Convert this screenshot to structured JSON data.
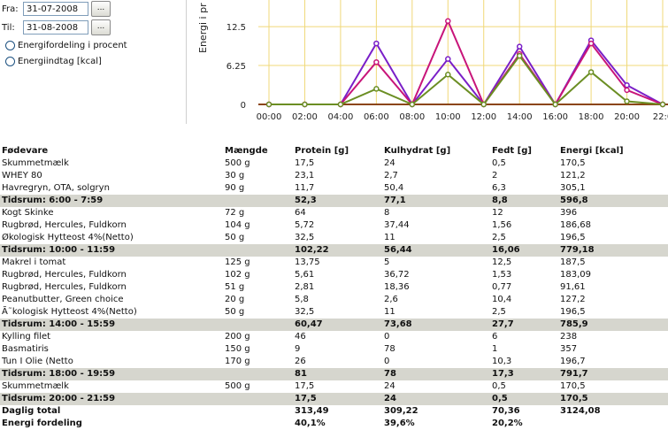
{
  "controls": {
    "from_label": "Fra:",
    "from_value": "31-07-2008",
    "to_label": "Til:",
    "to_value": "31-08-2008",
    "picker_label": "...",
    "radio_percent_label": "Energifordeling i procent",
    "radio_kcal_label": "Energiindtag [kcal]"
  },
  "chart_data": {
    "type": "line",
    "ylabel": "Energi i pr",
    "y_ticks": [
      "0",
      "6.25",
      "12.5"
    ],
    "ylim": [
      0,
      16.5
    ],
    "x": [
      "00:00",
      "02:00",
      "04:00",
      "06:00",
      "08:00",
      "10:00",
      "12:00",
      "14:00",
      "16:00",
      "18:00",
      "20:00",
      "22:0"
    ],
    "series": [
      {
        "color": "#7a1fc8",
        "values": [
          0,
          0,
          0,
          9.8,
          0,
          7.3,
          0,
          9.3,
          0,
          10.3,
          3.1,
          0
        ]
      },
      {
        "color": "#c8157a",
        "values": [
          0,
          0,
          0,
          6.8,
          0,
          13.4,
          0,
          8.1,
          0,
          9.8,
          2.3,
          0
        ]
      },
      {
        "color": "#6b8e23",
        "values": [
          0,
          0,
          0,
          2.5,
          0,
          4.8,
          0,
          7.8,
          0,
          5.2,
          0.5,
          0
        ]
      }
    ],
    "grid": true,
    "baseline_color": "#8b4513",
    "grid_color": "#f0d878"
  },
  "table": {
    "headers": [
      "Fødevare",
      "Mængde",
      "Protein [g]",
      "Kulhydrat [g]",
      "Fedt [g]",
      "Energi [kcal]"
    ],
    "rows": [
      {
        "type": "item",
        "cells": [
          "Skummetmælk",
          "500 g",
          "17,5",
          "24",
          "0,5",
          "170,5"
        ]
      },
      {
        "type": "item",
        "cells": [
          "WHEY 80",
          "30 g",
          "23,1",
          "2,7",
          "2",
          "121,2"
        ]
      },
      {
        "type": "item",
        "cells": [
          "Havregryn, OTA, solgryn",
          "90 g",
          "11,7",
          "50,4",
          "6,3",
          "305,1"
        ]
      },
      {
        "type": "sum",
        "cells": [
          "Tidsrum: 6:00 - 7:59",
          "",
          "52,3",
          "77,1",
          "8,8",
          "596,8"
        ]
      },
      {
        "type": "item",
        "cells": [
          "Kogt Skinke",
          "72 g",
          "64",
          "8",
          "12",
          "396"
        ]
      },
      {
        "type": "item",
        "cells": [
          "Rugbrød, Hercules, Fuldkorn",
          "104 g",
          "5,72",
          "37,44",
          "1,56",
          "186,68"
        ]
      },
      {
        "type": "item",
        "cells": [
          "Økologisk Hytteost 4%(Netto)",
          "50 g",
          "32,5",
          "11",
          "2,5",
          "196,5"
        ]
      },
      {
        "type": "sum",
        "cells": [
          "Tidsrum: 10:00 - 11:59",
          "",
          "102,22",
          "56,44",
          "16,06",
          "779,18"
        ]
      },
      {
        "type": "item",
        "cells": [
          "Makrel i tomat",
          "125 g",
          "13,75",
          "5",
          "12,5",
          "187,5"
        ]
      },
      {
        "type": "item",
        "cells": [
          "Rugbrød, Hercules, Fuldkorn",
          "102 g",
          "5,61",
          "36,72",
          "1,53",
          "183,09"
        ]
      },
      {
        "type": "item",
        "cells": [
          "Rugbrød, Hercules, Fuldkorn",
          "51 g",
          "2,81",
          "18,36",
          "0,77",
          "91,61"
        ]
      },
      {
        "type": "item",
        "cells": [
          "Peanutbutter, Green choice",
          "20 g",
          "5,8",
          "2,6",
          "10,4",
          "127,2"
        ]
      },
      {
        "type": "item",
        "cells": [
          "Ã˜kologisk Hytteost 4%(Netto)",
          "50 g",
          "32,5",
          "11",
          "2,5",
          "196,5"
        ]
      },
      {
        "type": "sum",
        "cells": [
          "Tidsrum: 14:00 - 15:59",
          "",
          "60,47",
          "73,68",
          "27,7",
          "785,9"
        ]
      },
      {
        "type": "item",
        "cells": [
          "Kylling filet",
          "200 g",
          "46",
          "0",
          "6",
          "238"
        ]
      },
      {
        "type": "item",
        "cells": [
          "Basmatiris",
          "150 g",
          "9",
          "78",
          "1",
          "357"
        ]
      },
      {
        "type": "item",
        "cells": [
          "Tun I Olie (Netto",
          "170 g",
          "26",
          "0",
          "10,3",
          "196,7"
        ]
      },
      {
        "type": "sum",
        "cells": [
          "Tidsrum: 18:00 - 19:59",
          "",
          "81",
          "78",
          "17,3",
          "791,7"
        ]
      },
      {
        "type": "item",
        "cells": [
          "Skummetmælk",
          "500 g",
          "17,5",
          "24",
          "0,5",
          "170,5"
        ]
      },
      {
        "type": "sum",
        "cells": [
          "Tidsrum: 20:00 - 21:59",
          "",
          "17,5",
          "24",
          "0,5",
          "170,5"
        ]
      },
      {
        "type": "total",
        "cells": [
          "Daglig total",
          "",
          "313,49",
          "309,22",
          "70,36",
          "3124,08"
        ]
      },
      {
        "type": "total",
        "cells": [
          "Energi fordeling",
          "",
          "40,1%",
          "39,6%",
          "20,2%",
          ""
        ]
      }
    ]
  }
}
